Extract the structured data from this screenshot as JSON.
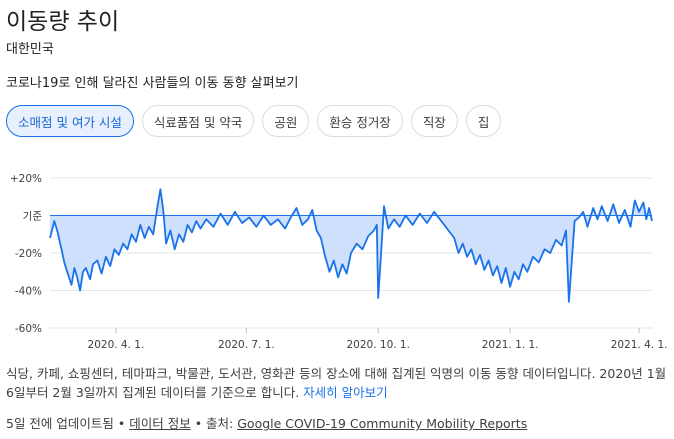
{
  "header": {
    "title": "이동량 추이",
    "country": "대한민국",
    "subtitle": "코로나19로 인해 달라진 사람들의 이동 동향 살펴보기"
  },
  "tabs": [
    {
      "label": "소매점 및 여가 시설",
      "active": true
    },
    {
      "label": "식료품점 및 약국",
      "active": false
    },
    {
      "label": "공원",
      "active": false
    },
    {
      "label": "환승 정거장",
      "active": false
    },
    {
      "label": "직장",
      "active": false
    },
    {
      "label": "집",
      "active": false
    }
  ],
  "description": {
    "text": "식당, 카페, 쇼핑센터, 테마파크, 박물관, 도서관, 영화관 등의 장소에 대해 집계된 익명의 이동 동향 데이터입니다. 2020년 1월 6일부터 2월 3일까지 집계된 데이터를 기준으로 합니다.",
    "link": "자세히 알아보기"
  },
  "footer": {
    "updated": "5일 전에 업데이트됨",
    "sep1": " • ",
    "data_info_link": "데이터 정보",
    "sep2": " • 출처: ",
    "source_link": "Google COVID-19 Community Mobility Reports"
  },
  "colors": {
    "line": "#1a73e8",
    "fill": "#c6dafc",
    "baseline": "#1a73e8",
    "active_chip_bg": "#e8f0fe"
  },
  "chart_data": {
    "type": "area",
    "title": "",
    "xlabel": "",
    "ylabel": "",
    "y_tick_labels": [
      "+20%",
      "기준",
      "-20%",
      "-40%",
      "-60%"
    ],
    "y_tick_values": [
      20,
      0,
      -20,
      -40,
      -60
    ],
    "ylim": [
      -60,
      20
    ],
    "x_tick_labels": [
      "2020. 4. 1.",
      "2020. 7. 1.",
      "2020. 10. 1.",
      "2021. 1. 1.",
      "2021. 4. 1."
    ],
    "x_tick_dates": [
      "2020-04-01",
      "2020-07-01",
      "2020-10-01",
      "2021-01-01",
      "2021-04-01"
    ],
    "xlim": [
      "2020-02-15",
      "2021-04-10"
    ],
    "baseline": 0,
    "grid": true,
    "series": [
      {
        "points": [
          [
            "2020-02-15",
            -12
          ],
          [
            "2020-02-18",
            -3
          ],
          [
            "2020-02-20",
            -8
          ],
          [
            "2020-02-23",
            -18
          ],
          [
            "2020-02-25",
            -25
          ],
          [
            "2020-02-27",
            -30
          ],
          [
            "2020-03-01",
            -37
          ],
          [
            "2020-03-03",
            -28
          ],
          [
            "2020-03-05",
            -33
          ],
          [
            "2020-03-07",
            -40
          ],
          [
            "2020-03-09",
            -30
          ],
          [
            "2020-03-11",
            -28
          ],
          [
            "2020-03-14",
            -34
          ],
          [
            "2020-03-16",
            -26
          ],
          [
            "2020-03-19",
            -24
          ],
          [
            "2020-03-22",
            -31
          ],
          [
            "2020-03-25",
            -22
          ],
          [
            "2020-03-28",
            -27
          ],
          [
            "2020-03-31",
            -18
          ],
          [
            "2020-04-03",
            -21
          ],
          [
            "2020-04-06",
            -15
          ],
          [
            "2020-04-09",
            -18
          ],
          [
            "2020-04-12",
            -10
          ],
          [
            "2020-04-15",
            -14
          ],
          [
            "2020-04-18",
            -5
          ],
          [
            "2020-04-21",
            -12
          ],
          [
            "2020-04-24",
            -6
          ],
          [
            "2020-04-27",
            -10
          ],
          [
            "2020-04-30",
            5
          ],
          [
            "2020-05-02",
            14
          ],
          [
            "2020-05-04",
            3
          ],
          [
            "2020-05-06",
            -15
          ],
          [
            "2020-05-09",
            -8
          ],
          [
            "2020-05-12",
            -18
          ],
          [
            "2020-05-15",
            -10
          ],
          [
            "2020-05-18",
            -14
          ],
          [
            "2020-05-21",
            -5
          ],
          [
            "2020-05-24",
            -9
          ],
          [
            "2020-05-27",
            -3
          ],
          [
            "2020-05-30",
            -7
          ],
          [
            "2020-06-03",
            -2
          ],
          [
            "2020-06-08",
            -6
          ],
          [
            "2020-06-13",
            1
          ],
          [
            "2020-06-18",
            -5
          ],
          [
            "2020-06-23",
            2
          ],
          [
            "2020-06-28",
            -4
          ],
          [
            "2020-07-03",
            -1
          ],
          [
            "2020-07-08",
            -6
          ],
          [
            "2020-07-13",
            0
          ],
          [
            "2020-07-18",
            -5
          ],
          [
            "2020-07-23",
            -2
          ],
          [
            "2020-07-28",
            -7
          ],
          [
            "2020-08-01",
            -1
          ],
          [
            "2020-08-05",
            4
          ],
          [
            "2020-08-09",
            -5
          ],
          [
            "2020-08-13",
            -2
          ],
          [
            "2020-08-16",
            3
          ],
          [
            "2020-08-19",
            -8
          ],
          [
            "2020-08-22",
            -12
          ],
          [
            "2020-08-25",
            -22
          ],
          [
            "2020-08-28",
            -30
          ],
          [
            "2020-08-31",
            -24
          ],
          [
            "2020-09-03",
            -33
          ],
          [
            "2020-09-06",
            -26
          ],
          [
            "2020-09-09",
            -31
          ],
          [
            "2020-09-12",
            -20
          ],
          [
            "2020-09-16",
            -15
          ],
          [
            "2020-09-20",
            -18
          ],
          [
            "2020-09-24",
            -11
          ],
          [
            "2020-09-28",
            -8
          ],
          [
            "2020-09-30",
            -5
          ],
          [
            "2020-10-01",
            -44
          ],
          [
            "2020-10-03",
            -20
          ],
          [
            "2020-10-05",
            5
          ],
          [
            "2020-10-08",
            -7
          ],
          [
            "2020-10-12",
            -2
          ],
          [
            "2020-10-16",
            -6
          ],
          [
            "2020-10-20",
            0
          ],
          [
            "2020-10-25",
            -5
          ],
          [
            "2020-10-30",
            1
          ],
          [
            "2020-11-04",
            -4
          ],
          [
            "2020-11-09",
            2
          ],
          [
            "2020-11-14",
            -3
          ],
          [
            "2020-11-19",
            -8
          ],
          [
            "2020-11-23",
            -12
          ],
          [
            "2020-11-26",
            -20
          ],
          [
            "2020-11-29",
            -15
          ],
          [
            "2020-12-02",
            -22
          ],
          [
            "2020-12-05",
            -18
          ],
          [
            "2020-12-08",
            -26
          ],
          [
            "2020-12-11",
            -21
          ],
          [
            "2020-12-14",
            -29
          ],
          [
            "2020-12-17",
            -24
          ],
          [
            "2020-12-20",
            -32
          ],
          [
            "2020-12-23",
            -27
          ],
          [
            "2020-12-26",
            -36
          ],
          [
            "2020-12-29",
            -28
          ],
          [
            "2021-01-01",
            -38
          ],
          [
            "2021-01-04",
            -30
          ],
          [
            "2021-01-07",
            -34
          ],
          [
            "2021-01-10",
            -26
          ],
          [
            "2021-01-13",
            -30
          ],
          [
            "2021-01-17",
            -22
          ],
          [
            "2021-01-21",
            -25
          ],
          [
            "2021-01-25",
            -18
          ],
          [
            "2021-01-29",
            -20
          ],
          [
            "2021-02-02",
            -13
          ],
          [
            "2021-02-06",
            -16
          ],
          [
            "2021-02-09",
            -8
          ],
          [
            "2021-02-11",
            -46
          ],
          [
            "2021-02-13",
            -25
          ],
          [
            "2021-02-15",
            -3
          ],
          [
            "2021-02-18",
            -1
          ],
          [
            "2021-02-21",
            2
          ],
          [
            "2021-02-24",
            -6
          ],
          [
            "2021-02-28",
            4
          ],
          [
            "2021-03-03",
            -2
          ],
          [
            "2021-03-06",
            5
          ],
          [
            "2021-03-10",
            -3
          ],
          [
            "2021-03-14",
            6
          ],
          [
            "2021-03-18",
            -4
          ],
          [
            "2021-03-22",
            3
          ],
          [
            "2021-03-26",
            -6
          ],
          [
            "2021-03-29",
            8
          ],
          [
            "2021-04-01",
            2
          ],
          [
            "2021-04-04",
            7
          ],
          [
            "2021-04-06",
            -2
          ],
          [
            "2021-04-08",
            4
          ],
          [
            "2021-04-10",
            -3
          ]
        ]
      }
    ]
  }
}
